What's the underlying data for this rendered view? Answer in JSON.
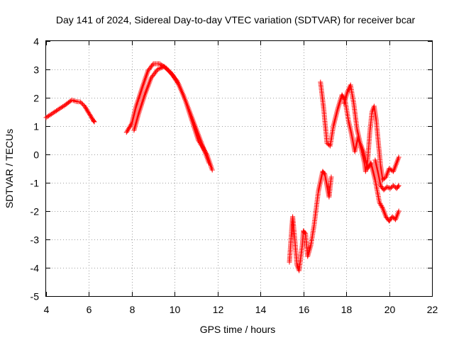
{
  "chart_data": {
    "type": "scatter",
    "title": "Day 141 of 2024, Sidereal Day-to-day VTEC variation (SDTVAR) for receiver bcar",
    "xlabel": "GPS time / hours",
    "ylabel": "SDTVAR / TECUs",
    "xlim": [
      4,
      22
    ],
    "ylim": [
      -5,
      4
    ],
    "x_ticks": [
      "4",
      "6",
      "8",
      "10",
      "12",
      "14",
      "16",
      "18",
      "20",
      "22"
    ],
    "y_ticks": [
      "4",
      "3",
      "2",
      "1",
      "0",
      "-1",
      "-2",
      "-3",
      "-4",
      "-5"
    ],
    "grid": true,
    "marker": "+",
    "series": [
      {
        "name": "bcar SDTVAR",
        "color": "#ff0000",
        "segments": [
          [
            [
              4.0,
              1.3
            ],
            [
              4.3,
              1.45
            ],
            [
              4.6,
              1.6
            ],
            [
              4.9,
              1.75
            ],
            [
              5.2,
              1.92
            ],
            [
              5.4,
              1.87
            ],
            [
              5.6,
              1.85
            ],
            [
              5.8,
              1.7
            ],
            [
              6.0,
              1.45
            ],
            [
              6.2,
              1.2
            ],
            [
              6.25,
              1.15
            ]
          ],
          [
            [
              7.75,
              0.78
            ],
            [
              8.0,
              1.1
            ],
            [
              8.2,
              1.7
            ],
            [
              8.5,
              2.4
            ],
            [
              8.75,
              2.95
            ],
            [
              9.0,
              3.2
            ],
            [
              9.3,
              3.2
            ],
            [
              9.6,
              3.05
            ],
            [
              9.9,
              2.8
            ],
            [
              10.2,
              2.45
            ],
            [
              10.5,
              1.9
            ],
            [
              10.8,
              1.2
            ],
            [
              11.1,
              0.5
            ],
            [
              11.5,
              0.0
            ],
            [
              11.75,
              -0.55
            ]
          ],
          [
            [
              8.1,
              0.85
            ],
            [
              8.3,
              1.4
            ],
            [
              8.6,
              2.1
            ],
            [
              8.9,
              2.7
            ],
            [
              9.2,
              3.0
            ],
            [
              9.5,
              3.1
            ],
            [
              9.8,
              2.9
            ],
            [
              10.1,
              2.6
            ],
            [
              10.4,
              2.1
            ],
            [
              10.7,
              1.5
            ],
            [
              11.0,
              0.9
            ],
            [
              11.3,
              0.3
            ],
            [
              11.6,
              -0.3
            ]
          ],
          [
            [
              15.35,
              -3.8
            ],
            [
              15.45,
              -2.7
            ],
            [
              15.5,
              -2.2
            ],
            [
              15.6,
              -3.0
            ],
            [
              15.7,
              -3.9
            ],
            [
              15.8,
              -4.1
            ],
            [
              15.95,
              -3.2
            ],
            [
              16.0,
              -2.7
            ],
            [
              16.1,
              -2.8
            ],
            [
              16.2,
              -3.6
            ],
            [
              16.35,
              -3.2
            ],
            [
              16.5,
              -2.5
            ],
            [
              16.7,
              -1.3
            ],
            [
              16.9,
              -0.6
            ],
            [
              17.0,
              -0.7
            ],
            [
              17.15,
              -1.3
            ],
            [
              17.2,
              -1.5
            ],
            [
              17.3,
              -0.8
            ]
          ],
          [
            [
              16.8,
              2.55
            ],
            [
              16.95,
              1.6
            ],
            [
              17.1,
              0.4
            ],
            [
              17.25,
              0.3
            ],
            [
              17.4,
              1.0
            ],
            [
              17.6,
              1.6
            ],
            [
              17.8,
              2.1
            ],
            [
              17.95,
              1.9
            ],
            [
              18.1,
              1.2
            ],
            [
              18.25,
              0.7
            ],
            [
              18.4,
              0.1
            ],
            [
              18.55,
              0.6
            ],
            [
              18.7,
              0.2
            ],
            [
              18.85,
              -0.3
            ],
            [
              18.9,
              -0.6
            ],
            [
              19.0,
              -0.2
            ],
            [
              19.1,
              0.8
            ],
            [
              19.2,
              1.5
            ],
            [
              19.3,
              1.7
            ],
            [
              19.4,
              1.2
            ],
            [
              19.5,
              0.4
            ],
            [
              19.6,
              -0.4
            ],
            [
              19.7,
              -0.9
            ],
            [
              19.85,
              -0.8
            ],
            [
              20.0,
              -0.5
            ],
            [
              20.2,
              -0.6
            ],
            [
              20.35,
              -0.3
            ],
            [
              20.45,
              -0.1
            ]
          ],
          [
            [
              17.9,
              1.8
            ],
            [
              18.05,
              2.2
            ],
            [
              18.2,
              2.45
            ],
            [
              18.35,
              1.8
            ],
            [
              18.5,
              0.9
            ],
            [
              18.65,
              0.4
            ],
            [
              18.8,
              0.1
            ],
            [
              19.0,
              -0.5
            ],
            [
              19.15,
              -0.3
            ],
            [
              19.35,
              -0.9
            ],
            [
              19.55,
              -1.7
            ],
            [
              19.7,
              -1.9
            ],
            [
              19.85,
              -2.2
            ],
            [
              20.0,
              -2.35
            ],
            [
              20.15,
              -2.2
            ],
            [
              20.3,
              -2.3
            ],
            [
              20.45,
              -2.0
            ]
          ],
          [
            [
              19.35,
              -0.2
            ],
            [
              19.5,
              -0.7
            ],
            [
              19.6,
              -1.1
            ],
            [
              19.75,
              -1.25
            ],
            [
              19.9,
              -1.15
            ],
            [
              20.05,
              -1.2
            ],
            [
              20.2,
              -1.1
            ],
            [
              20.35,
              -1.2
            ],
            [
              20.45,
              -1.1
            ]
          ]
        ]
      }
    ]
  }
}
